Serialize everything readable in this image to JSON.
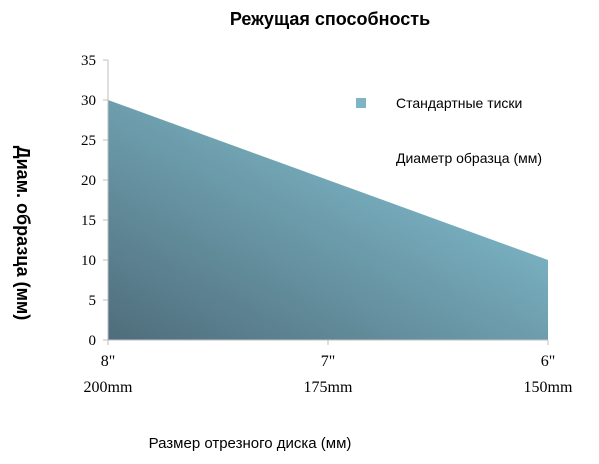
{
  "chart_data": {
    "type": "area",
    "title": "Режущая способность",
    "xlabel": "Размер отрезного диска (мм)",
    "ylabel": "Диам. образца (мм)",
    "categories": [
      {
        "inch": "8\"",
        "mm": "200mm"
      },
      {
        "inch": "7\"",
        "mm": "175mm"
      },
      {
        "inch": "6\"",
        "mm": "150mm"
      }
    ],
    "series": [
      {
        "name": "Стандартные тиски",
        "values": [
          30,
          20,
          10
        ]
      }
    ],
    "legend_extra": "Диаметр образца (мм)",
    "ylim": [
      0,
      35
    ],
    "yticks": [
      0,
      5,
      10,
      15,
      20,
      25,
      30,
      35
    ],
    "grid": false,
    "legend_position": "right",
    "colors": {
      "gradient_start": "#4f6d7b",
      "gradient_end": "#8ccfe0",
      "legend_swatch": "#7fb3c6",
      "axis": "#bfbfbf"
    }
  }
}
